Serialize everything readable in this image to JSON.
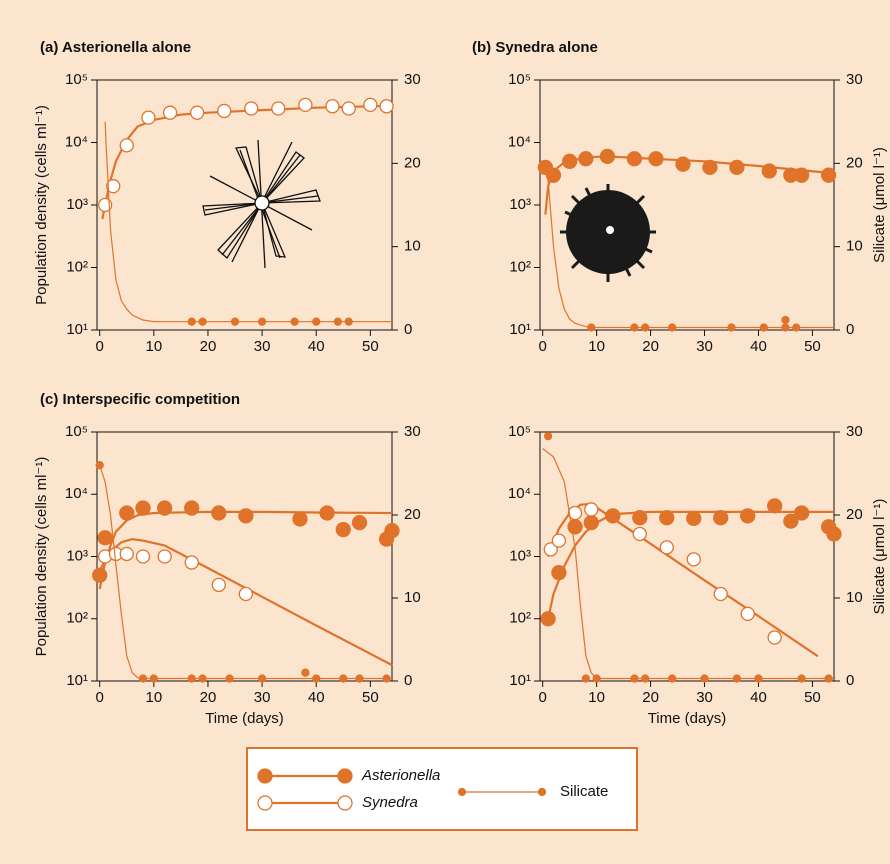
{
  "chart_data": [
    {
      "type": "line",
      "title": "(a) Asterionella alone",
      "ylabel": "Population density (cells ml⁻¹)",
      "xlim": [
        -0.5,
        54
      ],
      "xticks": [
        0,
        10,
        20,
        30,
        40,
        50
      ],
      "ylog": true,
      "ylim": [
        10,
        100000
      ],
      "yticks": [
        {
          "value": 10,
          "label": "10¹"
        },
        {
          "value": 100,
          "label": "10²"
        },
        {
          "value": 1000,
          "label": "10³"
        },
        {
          "value": 10000,
          "label": "10⁴"
        },
        {
          "value": 100000,
          "label": "10⁵"
        }
      ],
      "y2lim": [
        0,
        30
      ],
      "y2ticks": [
        0,
        10,
        20,
        30
      ],
      "series": [
        {
          "name": "Synedra",
          "color": "#e0732a",
          "marker": "open",
          "x": [
            1,
            2.5,
            5,
            9,
            13,
            18,
            23,
            28,
            33,
            38,
            43,
            46,
            50,
            53
          ],
          "values": [
            1000,
            2000,
            9000,
            25000,
            30000,
            30000,
            32000,
            35000,
            35000,
            40000,
            38000,
            35000,
            40000,
            38000
          ],
          "fit_x": [
            0.5,
            1,
            2,
            3,
            5,
            7,
            10,
            15,
            20,
            30,
            40,
            50,
            54
          ],
          "fit_values": [
            600,
            1000,
            2500,
            5000,
            11000,
            18000,
            23000,
            28000,
            30000,
            33000,
            36000,
            38000,
            39000
          ]
        },
        {
          "name": "Silicate",
          "color": "#e0732a",
          "marker": "dot",
          "axis": "y2",
          "x": [
            17,
            19,
            25,
            30,
            36,
            40,
            44,
            46
          ],
          "values": [
            1,
            1,
            1,
            1,
            1,
            1,
            1,
            1
          ],
          "fit_x": [
            1,
            1.2,
            2,
            3,
            4,
            5,
            6,
            8,
            10,
            20,
            54
          ],
          "fit_values": [
            25,
            22,
            12,
            6,
            3.5,
            2.5,
            1.8,
            1.2,
            1,
            1,
            1
          ]
        }
      ]
    },
    {
      "type": "line",
      "title": "(b) Synedra alone",
      "y2label": "Silicate (μmol l⁻¹)",
      "xlim": [
        -0.5,
        54
      ],
      "xticks": [
        0,
        10,
        20,
        30,
        40,
        50
      ],
      "ylog": true,
      "ylim": [
        10,
        100000
      ],
      "yticks": [
        {
          "value": 10,
          "label": "10¹"
        },
        {
          "value": 100,
          "label": "10²"
        },
        {
          "value": 1000,
          "label": "10³"
        },
        {
          "value": 10000,
          "label": "10⁴"
        },
        {
          "value": 100000,
          "label": "10⁵"
        }
      ],
      "y2lim": [
        0,
        30
      ],
      "y2ticks": [
        0,
        10,
        20,
        30
      ],
      "series": [
        {
          "name": "Asterionella",
          "color": "#e0732a",
          "marker": "filled",
          "x": [
            0.5,
            2,
            5,
            8,
            12,
            17,
            21,
            26,
            31,
            36,
            42,
            46,
            48,
            53
          ],
          "values": [
            4000,
            3000,
            5000,
            5500,
            6000,
            5500,
            5500,
            4500,
            4000,
            4000,
            3500,
            3000,
            3000,
            3000
          ],
          "fit_x": [
            0.5,
            1,
            2,
            4,
            8,
            12,
            20,
            30,
            40,
            54
          ],
          "fit_values": [
            700,
            2000,
            3500,
            4800,
            5800,
            6000,
            5500,
            5000,
            4200,
            3200
          ]
        },
        {
          "name": "Silicate",
          "color": "#e0732a",
          "marker": "dot",
          "axis": "y2",
          "x": [
            9,
            17,
            19,
            24,
            35,
            41,
            45,
            45,
            47
          ],
          "values": [
            0.3,
            0.3,
            0.3,
            0.3,
            0.3,
            0.3,
            0.3,
            1.2,
            0.3
          ],
          "fit_x": [
            0.5,
            1,
            2,
            3,
            4,
            5,
            6,
            8,
            10,
            54
          ],
          "fit_values": [
            20,
            18,
            10,
            5,
            2.5,
            1.3,
            0.8,
            0.4,
            0.3,
            0.3
          ]
        }
      ]
    },
    {
      "type": "line",
      "title": "(c) Interspecific competition",
      "ylabel": "Population density (cells ml⁻¹)",
      "xlabel": "Time (days)",
      "xlim": [
        -0.5,
        54
      ],
      "xticks": [
        0,
        10,
        20,
        30,
        40,
        50
      ],
      "ylog": true,
      "ylim": [
        10,
        100000
      ],
      "yticks": [
        {
          "value": 10,
          "label": "10¹"
        },
        {
          "value": 100,
          "label": "10²"
        },
        {
          "value": 1000,
          "label": "10³"
        },
        {
          "value": 10000,
          "label": "10⁴"
        },
        {
          "value": 100000,
          "label": "10⁵"
        }
      ],
      "y2lim": [
        0,
        30
      ],
      "y2ticks": [
        0,
        10,
        20,
        30
      ],
      "series": [
        {
          "name": "Asterionella",
          "color": "#e0732a",
          "marker": "filled",
          "x": [
            0,
            1,
            5,
            8,
            12,
            17,
            22,
            27,
            37,
            42,
            45,
            48,
            53,
            54
          ],
          "values": [
            500,
            2000,
            5000,
            6000,
            6000,
            6000,
            5000,
            4500,
            4000,
            5000,
            2700,
            3500,
            1900,
            2600
          ],
          "fit_x": [
            0,
            1,
            2,
            3,
            5,
            7,
            10,
            20,
            30,
            40,
            54
          ],
          "fit_values": [
            300,
            800,
            1500,
            2500,
            3800,
            4600,
            5000,
            5200,
            5200,
            5100,
            5000
          ]
        },
        {
          "name": "Synedra",
          "color": "#e0732a",
          "marker": "open",
          "x": [
            1,
            3,
            5,
            8,
            12,
            17,
            22,
            27
          ],
          "values": [
            1000,
            1100,
            1100,
            1000,
            1000,
            800,
            350,
            250
          ],
          "fit_x": [
            0,
            2,
            4,
            6,
            8,
            12,
            20,
            30,
            40,
            54
          ],
          "fit_values": [
            600,
            1200,
            1700,
            1900,
            1800,
            1500,
            650,
            225,
            78,
            18
          ]
        },
        {
          "name": "Silicate",
          "color": "#e0732a",
          "marker": "dot",
          "axis": "y2",
          "x": [
            0,
            8,
            10,
            17,
            19,
            24,
            30,
            38,
            40,
            45,
            48,
            53
          ],
          "values": [
            26,
            0.3,
            0.3,
            0.3,
            0.3,
            0.3,
            0.3,
            1,
            0.3,
            0.3,
            0.3,
            0.3
          ],
          "fit_x": [
            0,
            1,
            2,
            3,
            4,
            5,
            6,
            7,
            8,
            54
          ],
          "fit_values": [
            26,
            24,
            20,
            14,
            8,
            3,
            1,
            0.4,
            0.3,
            0.3
          ]
        }
      ]
    },
    {
      "type": "line",
      "y2label": "Silicate (μmol l⁻¹)",
      "xlabel": "Time (days)",
      "xlim": [
        -0.5,
        54
      ],
      "xticks": [
        0,
        10,
        20,
        30,
        40,
        50
      ],
      "ylog": true,
      "ylim": [
        10,
        100000
      ],
      "yticks": [
        {
          "value": 10,
          "label": "10¹"
        },
        {
          "value": 100,
          "label": "10²"
        },
        {
          "value": 1000,
          "label": "10³"
        },
        {
          "value": 10000,
          "label": "10⁴"
        },
        {
          "value": 100000,
          "label": "10⁵"
        }
      ],
      "y2lim": [
        0,
        30
      ],
      "y2ticks": [
        0,
        10,
        20,
        30
      ],
      "series": [
        {
          "name": "Asterionella",
          "color": "#e0732a",
          "marker": "filled",
          "x": [
            1,
            3,
            6,
            9,
            13,
            18,
            23,
            28,
            33,
            38,
            43,
            46,
            48,
            53,
            54
          ],
          "values": [
            100,
            550,
            3000,
            3500,
            4500,
            4200,
            4200,
            4100,
            4200,
            4500,
            6500,
            3700,
            5000,
            3000,
            2300
          ],
          "fit_x": [
            1,
            2,
            4,
            6,
            8,
            10,
            13,
            20,
            30,
            40,
            54
          ],
          "fit_values": [
            100,
            250,
            700,
            1500,
            2500,
            3500,
            4800,
            5200,
            5200,
            5200,
            5200
          ]
        },
        {
          "name": "Synedra",
          "color": "#e0732a",
          "marker": "open",
          "x": [
            1.5,
            3,
            6,
            9,
            18,
            23,
            28,
            33,
            38,
            43
          ],
          "values": [
            1300,
            1800,
            5000,
            5700,
            2300,
            1400,
            900,
            250,
            120,
            50
          ],
          "fit_x": [
            1,
            3,
            5,
            7,
            9,
            20,
            30,
            40,
            51
          ],
          "fit_values": [
            1000,
            2800,
            5000,
            6800,
            7000,
            1600,
            415,
            110,
            25
          ]
        },
        {
          "name": "Silicate",
          "color": "#e0732a",
          "marker": "dot",
          "axis": "y2",
          "x": [
            1,
            8,
            10,
            17,
            19,
            24,
            30,
            36,
            40,
            48,
            53
          ],
          "values": [
            29.5,
            0.3,
            0.3,
            0.3,
            0.3,
            0.3,
            0.3,
            0.3,
            0.3,
            0.3,
            0.3
          ],
          "fit_x": [
            0,
            2,
            4,
            6,
            7,
            8,
            9,
            10,
            54
          ],
          "fit_values": [
            28,
            27,
            24,
            16,
            9,
            3,
            1,
            0.3,
            0.3
          ]
        }
      ]
    }
  ]
}
